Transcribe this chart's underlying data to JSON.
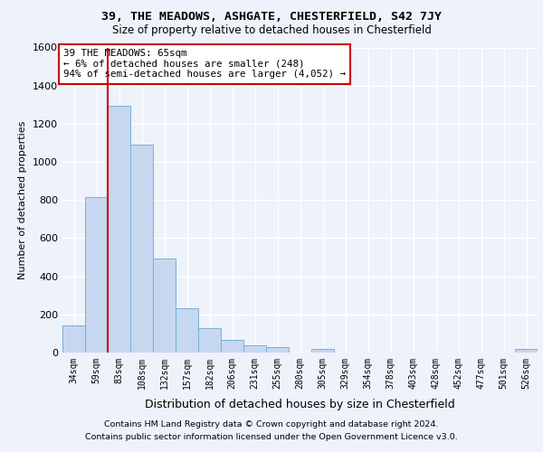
{
  "title1": "39, THE MEADOWS, ASHGATE, CHESTERFIELD, S42 7JY",
  "title2": "Size of property relative to detached houses in Chesterfield",
  "xlabel": "Distribution of detached houses by size in Chesterfield",
  "ylabel": "Number of detached properties",
  "footer1": "Contains HM Land Registry data © Crown copyright and database right 2024.",
  "footer2": "Contains public sector information licensed under the Open Government Licence v3.0.",
  "bar_labels": [
    "34sqm",
    "59sqm",
    "83sqm",
    "108sqm",
    "132sqm",
    "157sqm",
    "182sqm",
    "206sqm",
    "231sqm",
    "255sqm",
    "280sqm",
    "305sqm",
    "329sqm",
    "354sqm",
    "378sqm",
    "403sqm",
    "428sqm",
    "452sqm",
    "477sqm",
    "501sqm",
    "526sqm"
  ],
  "bar_values": [
    140,
    815,
    1295,
    1090,
    495,
    232,
    130,
    68,
    40,
    27,
    0,
    17,
    0,
    0,
    0,
    0,
    0,
    0,
    0,
    0,
    17
  ],
  "bar_color": "#c5d8f0",
  "bar_edge_color": "#7aafd4",
  "annotation_title": "39 THE MEADOWS: 65sqm",
  "annotation_line1": "← 6% of detached houses are smaller (248)",
  "annotation_line2": "94% of semi-detached houses are larger (4,052) →",
  "annotation_box_color": "#ffffff",
  "annotation_box_edge_color": "#cc0000",
  "vline_color": "#cc0000",
  "ylim": [
    0,
    1600
  ],
  "yticks": [
    0,
    200,
    400,
    600,
    800,
    1000,
    1200,
    1400,
    1600
  ],
  "bg_color": "#eef2fb",
  "axes_bg_color": "#eef2fb",
  "grid_color": "#ffffff"
}
